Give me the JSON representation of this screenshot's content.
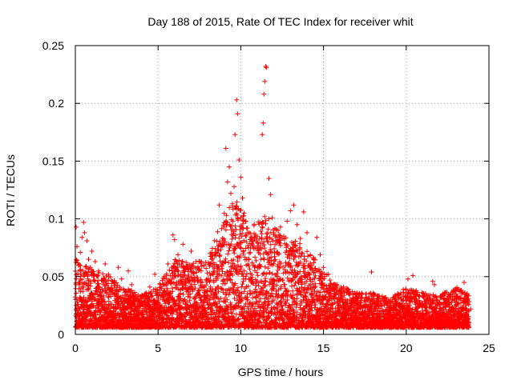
{
  "chart_data": {
    "type": "scatter",
    "title": "Day 188 of 2015, Rate Of TEC Index for receiver whit",
    "xlabel": "GPS time / hours",
    "ylabel": "ROTI / TECUs",
    "xlim": [
      0,
      25
    ],
    "ylim": [
      0,
      0.25
    ],
    "x_ticks": [
      0,
      5,
      10,
      15,
      20,
      25
    ],
    "y_ticks": [
      0,
      0.05,
      0.1,
      0.15,
      0.2,
      0.25
    ],
    "x_tick_labels": [
      "0",
      "5",
      "10",
      "15",
      "20",
      "25"
    ],
    "y_tick_labels": [
      "0",
      "0.05",
      "0.1",
      "0.15",
      "0.2",
      "0.25"
    ],
    "grid": true,
    "marker": "+",
    "series": [
      {
        "name": "ROTI",
        "color": "#ff0000",
        "points": [
          [
            0.05,
            0.093
          ],
          [
            0.1,
            0.076
          ],
          [
            0.15,
            0.062
          ],
          [
            0.2,
            0.045
          ],
          [
            0.3,
            0.071
          ],
          [
            0.4,
            0.084
          ],
          [
            0.5,
            0.097
          ],
          [
            0.55,
            0.088
          ],
          [
            0.7,
            0.081
          ],
          [
            0.8,
            0.065
          ],
          [
            0.9,
            0.058
          ],
          [
            1.0,
            0.072
          ],
          [
            1.2,
            0.063
          ],
          [
            1.4,
            0.055
          ],
          [
            1.6,
            0.047
          ],
          [
            1.8,
            0.061
          ],
          [
            2.0,
            0.052
          ],
          [
            2.2,
            0.044
          ],
          [
            2.4,
            0.038
          ],
          [
            2.6,
            0.058
          ],
          [
            2.8,
            0.048
          ],
          [
            3.0,
            0.031
          ],
          [
            3.2,
            0.055
          ],
          [
            3.4,
            0.043
          ],
          [
            3.6,
            0.024
          ],
          [
            3.8,
            0.031
          ],
          [
            4.0,
            0.026
          ],
          [
            4.2,
            0.035
          ],
          [
            4.5,
            0.041
          ],
          [
            4.8,
            0.052
          ],
          [
            5.0,
            0.036
          ],
          [
            5.3,
            0.043
          ],
          [
            5.6,
            0.061
          ],
          [
            5.9,
            0.086
          ],
          [
            6.0,
            0.082
          ],
          [
            6.2,
            0.069
          ],
          [
            6.5,
            0.078
          ],
          [
            6.8,
            0.058
          ],
          [
            7.0,
            0.072
          ],
          [
            7.3,
            0.063
          ],
          [
            7.6,
            0.055
          ],
          [
            7.9,
            0.047
          ],
          [
            8.2,
            0.061
          ],
          [
            8.5,
            0.068
          ],
          [
            8.7,
            0.112
          ],
          [
            8.9,
            0.079
          ],
          [
            9.0,
            0.093
          ],
          [
            9.1,
            0.161
          ],
          [
            9.2,
            0.132
          ],
          [
            9.3,
            0.145
          ],
          [
            9.4,
            0.122
          ],
          [
            9.5,
            0.113
          ],
          [
            9.6,
            0.128
          ],
          [
            9.65,
            0.173
          ],
          [
            9.75,
            0.203
          ],
          [
            9.8,
            0.191
          ],
          [
            9.9,
            0.151
          ],
          [
            10.0,
            0.136
          ],
          [
            10.1,
            0.118
          ],
          [
            10.2,
            0.105
          ],
          [
            10.3,
            0.098
          ],
          [
            10.5,
            0.088
          ],
          [
            10.7,
            0.081
          ],
          [
            10.9,
            0.075
          ],
          [
            11.0,
            0.085
          ],
          [
            11.1,
            0.073
          ],
          [
            11.3,
            0.173
          ],
          [
            11.35,
            0.183
          ],
          [
            11.4,
            0.208
          ],
          [
            11.45,
            0.219
          ],
          [
            11.5,
            0.232
          ],
          [
            11.55,
            0.231
          ],
          [
            11.7,
            0.135
          ],
          [
            11.8,
            0.121
          ],
          [
            11.9,
            0.101
          ],
          [
            12.0,
            0.088
          ],
          [
            12.2,
            0.079
          ],
          [
            12.4,
            0.093
          ],
          [
            12.6,
            0.085
          ],
          [
            12.8,
            0.098
          ],
          [
            13.0,
            0.107
          ],
          [
            13.2,
            0.112
          ],
          [
            13.4,
            0.095
          ],
          [
            13.6,
            0.083
          ],
          [
            13.8,
            0.106
          ],
          [
            14.0,
            0.088
          ],
          [
            14.2,
            0.069
          ],
          [
            14.4,
            0.062
          ],
          [
            14.6,
            0.084
          ],
          [
            14.8,
            0.069
          ],
          [
            15.0,
            0.058
          ],
          [
            15.3,
            0.052
          ],
          [
            15.6,
            0.043
          ],
          [
            15.9,
            0.035
          ],
          [
            16.2,
            0.041
          ],
          [
            16.5,
            0.037
          ],
          [
            16.8,
            0.031
          ],
          [
            17.2,
            0.028
          ],
          [
            17.6,
            0.025
          ],
          [
            17.9,
            0.054
          ],
          [
            18.3,
            0.031
          ],
          [
            18.7,
            0.027
          ],
          [
            19.0,
            0.024
          ],
          [
            19.4,
            0.029
          ],
          [
            19.8,
            0.022
          ],
          [
            20.1,
            0.048
          ],
          [
            20.4,
            0.051
          ],
          [
            20.8,
            0.025
          ],
          [
            21.2,
            0.021
          ],
          [
            21.6,
            0.046
          ],
          [
            21.7,
            0.043
          ],
          [
            22.0,
            0.028
          ],
          [
            22.4,
            0.024
          ],
          [
            22.8,
            0.033
          ],
          [
            23.2,
            0.039
          ],
          [
            23.5,
            0.045
          ],
          [
            23.7,
            0.031
          ],
          [
            23.9,
            0.022
          ]
        ]
      }
    ]
  }
}
